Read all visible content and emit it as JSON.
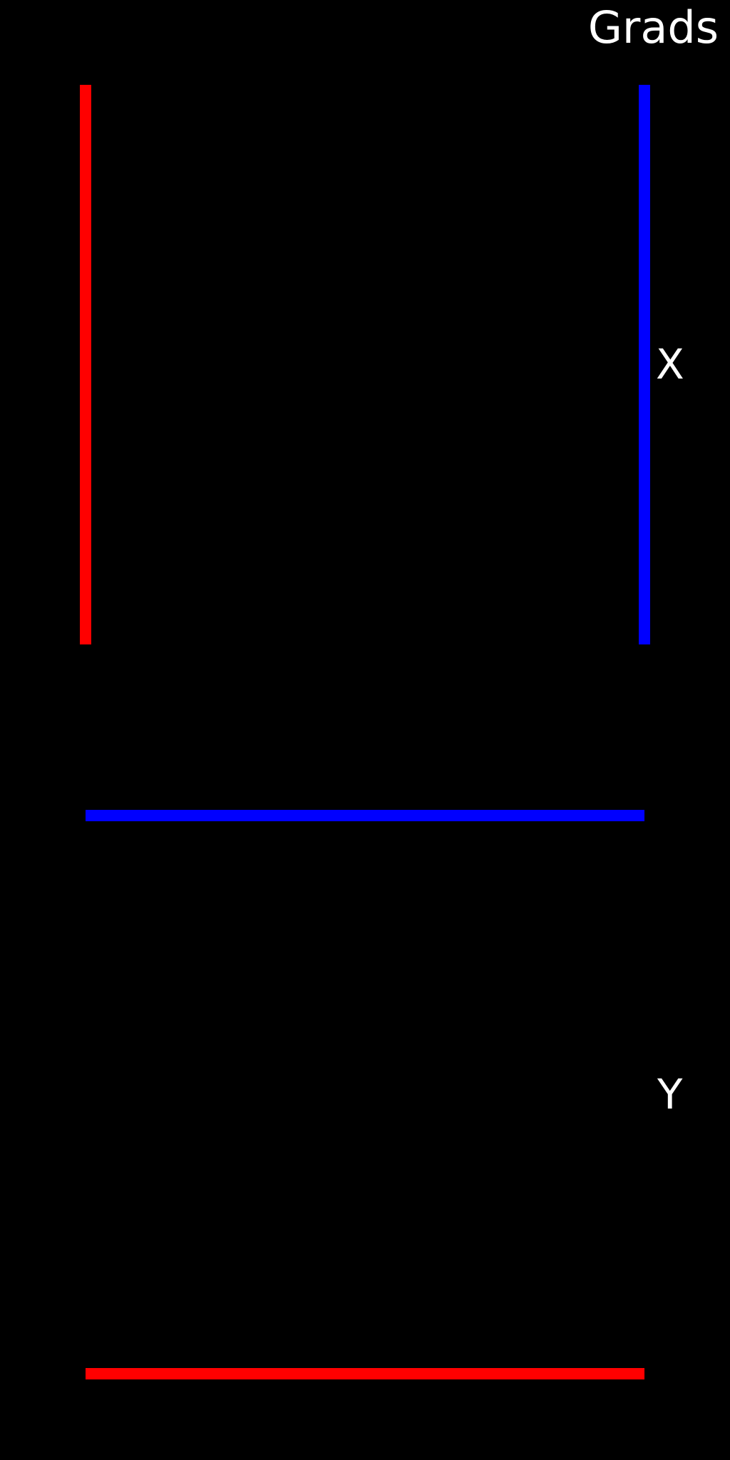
{
  "title": "Grads",
  "sections": {
    "x": {
      "label": "X",
      "first_bar_color": "#ff0000",
      "second_bar_color": "#0000ff"
    },
    "y": {
      "label": "Y",
      "first_bar_color": "#0000ff",
      "second_bar_color": "#ff0000"
    }
  }
}
